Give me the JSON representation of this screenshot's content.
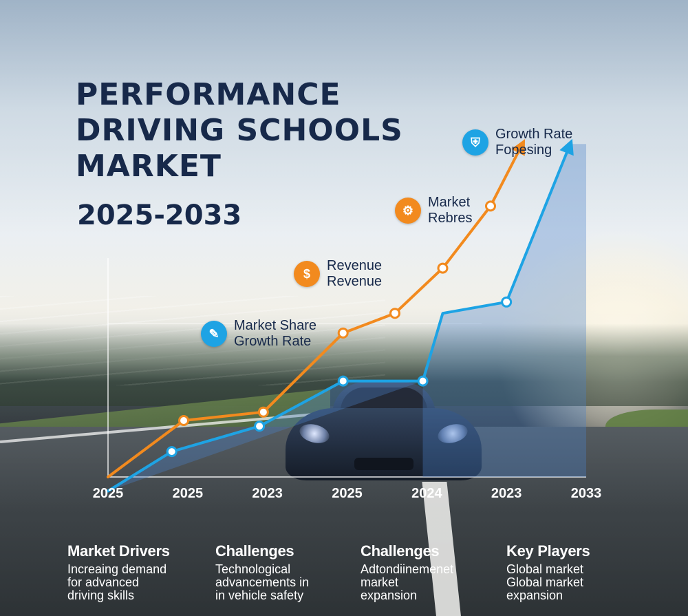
{
  "title": {
    "line1": "PERFORMANCE",
    "line2": "DRIVING SCHOOLS",
    "line3": "MARKET",
    "years": "2025-2033"
  },
  "callouts": [
    {
      "line1": "Market Share",
      "line2": "Growth Rate",
      "color": "#1ea3e4",
      "icon": "chart-edit-icon",
      "glyph": "✎"
    },
    {
      "line1": "Revenue",
      "line2": "Revenue",
      "color": "#f28a1e",
      "icon": "money-icon",
      "glyph": "$"
    },
    {
      "line1": "Market",
      "line2": "Rebres",
      "color": "#f28a1e",
      "icon": "gear-icon",
      "glyph": "⚙"
    },
    {
      "line1": "Growth Rate",
      "line2": "Fopesing",
      "color": "#1ea3e4",
      "icon": "shield-icon",
      "glyph": "⛨"
    }
  ],
  "bottom": [
    {
      "heading": "Market Drivers",
      "lines": [
        "Increaing demand",
        "for advanced",
        "driving skills"
      ]
    },
    {
      "heading": "Challenges",
      "lines": [
        "Technological",
        "advancements in",
        "in vehicle safety"
      ]
    },
    {
      "heading": "Challenges",
      "lines": [
        "Adtondiinemenet",
        "market",
        "expansion"
      ]
    },
    {
      "heading": "Key Players",
      "lines": [
        "Global market",
        "Global market",
        "expansion"
      ]
    }
  ],
  "colors": {
    "orange": "#f28a1e",
    "blue": "#1ea3e4",
    "navy": "#17294a"
  },
  "chart_data": {
    "type": "line",
    "title": "PERFORMANCE DRIVING SCHOOLS MARKET",
    "categories": [
      "2025",
      "2025",
      "2023",
      "2025",
      "2024",
      "2023",
      "2033"
    ],
    "grid": false,
    "series": [
      {
        "color": "#f28a1e",
        "values": [
          0,
          20,
          23,
          51,
          58,
          74,
          96,
          118
        ],
        "x": [
          0,
          0.95,
          1.95,
          2.95,
          3.6,
          4.2,
          4.8,
          5.2
        ],
        "markers": [
          1,
          2,
          3,
          4,
          5,
          6
        ]
      },
      {
        "color": "#1ea3e4",
        "values": [
          -5,
          9,
          18,
          34,
          34,
          58,
          62,
          118
        ],
        "x": [
          0,
          0.8,
          1.9,
          2.95,
          3.95,
          4.2,
          5.0,
          5.8
        ],
        "markers": [
          1,
          2,
          3,
          4,
          6
        ]
      }
    ]
  }
}
